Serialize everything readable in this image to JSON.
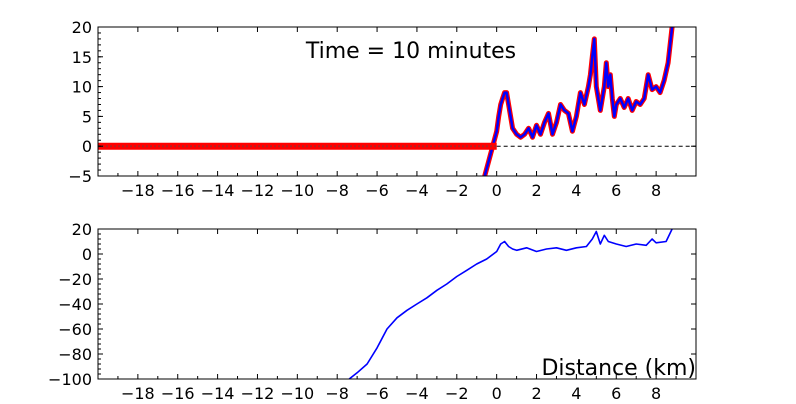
{
  "figure": {
    "annotation": "Time = 10 minutes",
    "xlabel": "Distance (km)"
  },
  "chart_data": [
    {
      "type": "line",
      "title": "",
      "xlabel": "",
      "ylabel": "",
      "xlim": [
        -20,
        10
      ],
      "ylim": [
        -5,
        20
      ],
      "xticks": [
        -18,
        -16,
        -14,
        -12,
        -10,
        -8,
        -6,
        -4,
        -2,
        0,
        2,
        4,
        6,
        8
      ],
      "yticks": [
        -5,
        0,
        5,
        10,
        15,
        20
      ],
      "annotations": [
        "Time = 10 minutes"
      ],
      "reference_line": {
        "y": 0,
        "x_from": 0,
        "x_to": 10,
        "style": "dashed"
      },
      "series": [
        {
          "role": "topography",
          "color": "#0000ff",
          "x": [
            -0.6,
            -0.4,
            -0.2,
            0.0,
            0.1,
            0.2,
            0.3,
            0.4,
            0.5,
            0.6,
            0.7,
            0.8,
            1.0,
            1.2,
            1.4,
            1.6,
            1.8,
            2.0,
            2.2,
            2.4,
            2.6,
            2.8,
            3.0,
            3.2,
            3.4,
            3.6,
            3.8,
            4.0,
            4.2,
            4.4,
            4.6,
            4.7,
            4.8,
            4.9,
            5.0,
            5.1,
            5.2,
            5.3,
            5.4,
            5.5,
            5.6,
            5.7,
            5.8,
            5.9,
            6.0,
            6.2,
            6.4,
            6.6,
            6.8,
            7.0,
            7.2,
            7.4,
            7.6,
            7.8,
            8.0,
            8.2,
            8.4,
            8.6,
            8.7,
            8.8
          ],
          "y": [
            -5,
            -2.5,
            0,
            2.5,
            5,
            7,
            8,
            9,
            9,
            7,
            5,
            3,
            2,
            1.5,
            2,
            3,
            1.5,
            3.5,
            2,
            4,
            5.5,
            2,
            4,
            7,
            6,
            5.5,
            2.5,
            5,
            9,
            7,
            10,
            12,
            15,
            18,
            10,
            8,
            6,
            8,
            10,
            14,
            10,
            12,
            8,
            5,
            7,
            8,
            6.5,
            8,
            6,
            7.5,
            7,
            8,
            12,
            9.5,
            10,
            9,
            11,
            14,
            17,
            20
          ]
        },
        {
          "role": "water-level",
          "color": "#ff0000",
          "x": [
            -20,
            -1.0,
            -0.5,
            0.0
          ],
          "y": [
            0,
            0,
            0,
            0
          ]
        }
      ]
    },
    {
      "type": "line",
      "title": "",
      "xlabel": "Distance (km)",
      "ylabel": "",
      "xlim": [
        -20,
        10
      ],
      "ylim": [
        -100,
        20
      ],
      "xticks": [
        -18,
        -16,
        -14,
        -12,
        -10,
        -8,
        -6,
        -4,
        -2,
        0,
        2,
        4,
        6,
        8
      ],
      "yticks": [
        -100,
        -80,
        -60,
        -40,
        -20,
        0,
        20
      ],
      "series": [
        {
          "role": "topography",
          "color": "#0000ff",
          "x": [
            -7.4,
            -7.0,
            -6.5,
            -6.0,
            -5.5,
            -5.0,
            -4.5,
            -4.0,
            -3.5,
            -3.0,
            -2.5,
            -2.0,
            -1.5,
            -1.0,
            -0.5,
            0.0,
            0.2,
            0.4,
            0.6,
            0.8,
            1.0,
            1.5,
            2.0,
            2.5,
            3.0,
            3.5,
            4.0,
            4.5,
            4.8,
            5.0,
            5.2,
            5.4,
            5.6,
            6.0,
            6.5,
            7.0,
            7.5,
            7.8,
            8.0,
            8.5,
            8.8
          ],
          "y": [
            -100,
            -95,
            -88,
            -75,
            -60,
            -51,
            -45,
            -40,
            -35,
            -29,
            -24,
            -18,
            -13,
            -8,
            -4,
            2,
            8,
            10,
            6,
            4,
            3,
            5,
            2,
            4,
            5,
            3,
            5,
            6,
            12,
            18,
            8,
            15,
            10,
            8,
            6,
            8,
            7,
            12,
            9,
            10,
            20
          ]
        }
      ]
    }
  ]
}
